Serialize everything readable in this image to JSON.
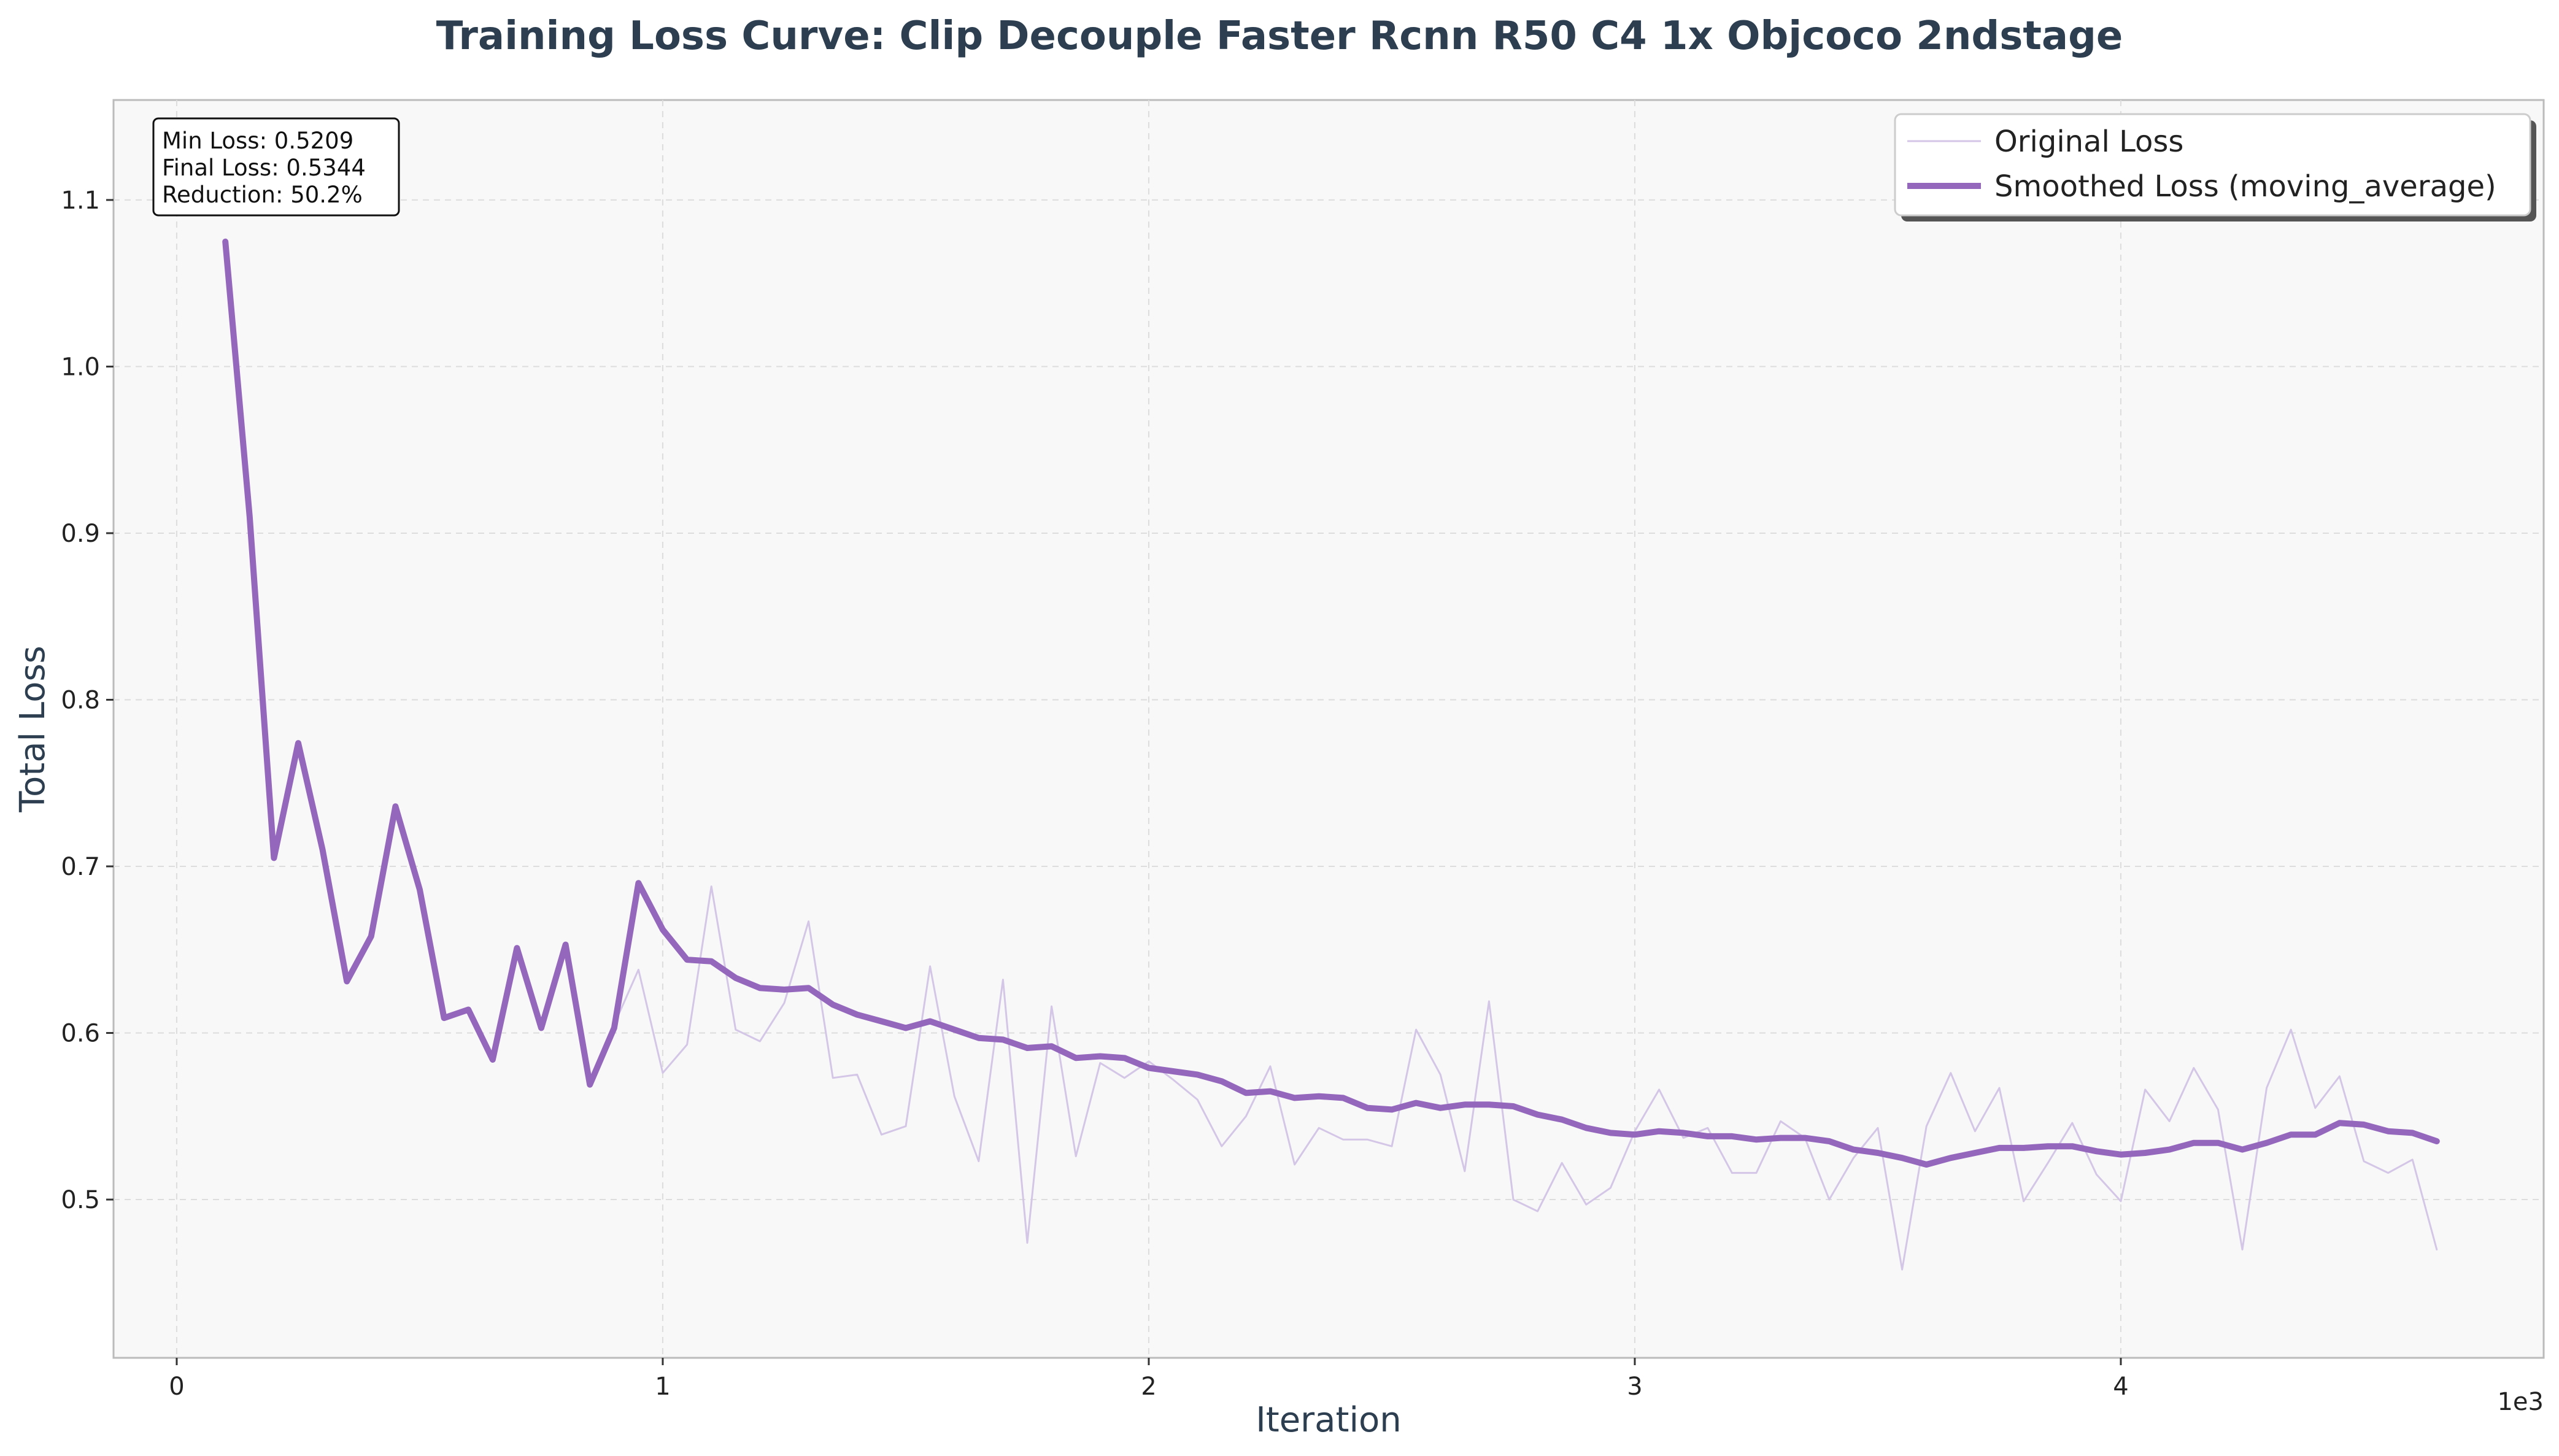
{
  "chart_data": {
    "type": "line",
    "title": "Training Loss Curve: Clip Decouple Faster Rcnn R50 C4 1x Objcoco 2ndstage",
    "xlabel": "Iteration",
    "ylabel": "Total Loss",
    "x_multiplier_label": "1e3",
    "x_ticks": [
      "0",
      "1",
      "2",
      "3",
      "4"
    ],
    "y_ticks": [
      "0.5",
      "0.6",
      "0.7",
      "0.8",
      "0.9",
      "1.0",
      "1.1"
    ],
    "xlim": [
      -130,
      4870
    ],
    "ylim": [
      0.405,
      1.16
    ],
    "grid": true,
    "legend_position": "top-right",
    "stats": {
      "min_loss": "Min Loss: 0.5209",
      "final_loss": "Final Loss: 0.5344",
      "reduction": "Reduction: 50.2%"
    },
    "series": [
      {
        "name": "Original Loss",
        "color": "#d4c6e6",
        "x": [
          100,
          150,
          200,
          250,
          300,
          350,
          400,
          450,
          500,
          550,
          600,
          650,
          700,
          750,
          800,
          850,
          900,
          950,
          1000,
          1050,
          1100,
          1150,
          1200,
          1250,
          1300,
          1350,
          1400,
          1450,
          1500,
          1550,
          1600,
          1650,
          1700,
          1750,
          1800,
          1850,
          1900,
          1950,
          2000,
          2050,
          2100,
          2150,
          2200,
          2250,
          2300,
          2350,
          2400,
          2450,
          2500,
          2550,
          2600,
          2650,
          2700,
          2750,
          2800,
          2850,
          2900,
          2950,
          3000,
          3050,
          3100,
          3150,
          3200,
          3250,
          3300,
          3350,
          3400,
          3450,
          3500,
          3550,
          3600,
          3650,
          3700,
          3750,
          3800,
          3850,
          3900,
          3950,
          4000,
          4050,
          4100,
          4150,
          4200,
          4250,
          4300,
          4350,
          4400,
          4450,
          4500,
          4550,
          4600,
          4650
        ],
        "values": [
          1.075,
          0.91,
          0.705,
          0.774,
          0.71,
          0.631,
          0.658,
          0.736,
          0.686,
          0.609,
          0.614,
          0.584,
          0.651,
          0.603,
          0.653,
          0.569,
          0.605,
          0.638,
          0.576,
          0.593,
          0.688,
          0.602,
          0.595,
          0.618,
          0.667,
          0.573,
          0.575,
          0.539,
          0.544,
          0.64,
          0.562,
          0.523,
          0.632,
          0.474,
          0.616,
          0.526,
          0.582,
          0.573,
          0.583,
          0.572,
          0.56,
          0.532,
          0.55,
          0.58,
          0.521,
          0.543,
          0.536,
          0.536,
          0.532,
          0.602,
          0.575,
          0.517,
          0.619,
          0.5,
          0.493,
          0.522,
          0.497,
          0.507,
          0.541,
          0.566,
          0.537,
          0.543,
          0.516,
          0.516,
          0.547,
          0.537,
          0.5,
          0.525,
          0.543,
          0.458,
          0.544,
          0.576,
          0.541,
          0.567,
          0.499,
          0.522,
          0.546,
          0.515,
          0.499,
          0.566,
          0.547,
          0.579,
          0.554,
          0.47,
          0.567,
          0.602,
          0.555,
          0.574,
          0.523,
          0.516,
          0.524,
          0.47
        ]
      },
      {
        "name": "Smoothed Loss (moving_average)",
        "color": "#9467bd",
        "x": [
          100,
          150,
          200,
          250,
          300,
          350,
          400,
          450,
          500,
          550,
          600,
          650,
          700,
          750,
          800,
          850,
          900,
          950,
          1000,
          1050,
          1100,
          1150,
          1200,
          1250,
          1300,
          1350,
          1400,
          1450,
          1500,
          1550,
          1600,
          1650,
          1700,
          1750,
          1800,
          1850,
          1900,
          1950,
          2000,
          2050,
          2100,
          2150,
          2200,
          2250,
          2300,
          2350,
          2400,
          2450,
          2500,
          2550,
          2600,
          2650,
          2700,
          2750,
          2800,
          2850,
          2900,
          2950,
          3000,
          3050,
          3100,
          3150,
          3200,
          3250,
          3300,
          3350,
          3400,
          3450,
          3500,
          3550,
          3600,
          3650,
          3700,
          3750,
          3800,
          3850,
          3900,
          3950,
          4000,
          4050,
          4100,
          4150,
          4200,
          4250,
          4300,
          4350,
          4400,
          4450,
          4500,
          4550,
          4600,
          4650
        ],
        "values": [
          1.075,
          0.91,
          0.705,
          0.774,
          0.71,
          0.631,
          0.658,
          0.736,
          0.686,
          0.609,
          0.614,
          0.584,
          0.651,
          0.603,
          0.653,
          0.569,
          0.603,
          0.69,
          0.662,
          0.644,
          0.643,
          0.633,
          0.627,
          0.626,
          0.627,
          0.617,
          0.611,
          0.607,
          0.603,
          0.607,
          0.602,
          0.597,
          0.596,
          0.591,
          0.592,
          0.585,
          0.586,
          0.585,
          0.579,
          0.577,
          0.575,
          0.571,
          0.564,
          0.565,
          0.561,
          0.562,
          0.561,
          0.555,
          0.554,
          0.558,
          0.555,
          0.557,
          0.557,
          0.556,
          0.551,
          0.548,
          0.543,
          0.54,
          0.539,
          0.541,
          0.54,
          0.538,
          0.538,
          0.536,
          0.537,
          0.537,
          0.535,
          0.53,
          0.528,
          0.525,
          0.521,
          0.525,
          0.528,
          0.531,
          0.531,
          0.532,
          0.532,
          0.529,
          0.527,
          0.528,
          0.53,
          0.534,
          0.534,
          0.53,
          0.534,
          0.539,
          0.539,
          0.546,
          0.545,
          0.541,
          0.54,
          0.535
        ]
      }
    ]
  }
}
